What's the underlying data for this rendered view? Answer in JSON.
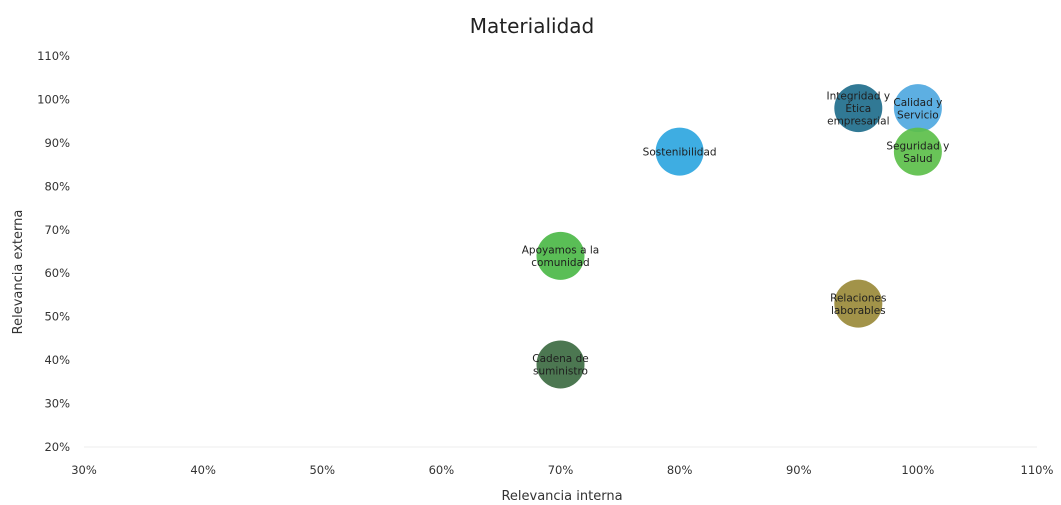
{
  "chart_data": {
    "type": "scatter",
    "title": "Materialidad",
    "xlabel": "Relevancia interna",
    "ylabel": "Relevancia externa",
    "xlim": [
      30,
      110
    ],
    "ylim": [
      20,
      110
    ],
    "x_ticks": [
      "30%",
      "40%",
      "50%",
      "60%",
      "70%",
      "80%",
      "90%",
      "100%",
      "110%"
    ],
    "y_ticks": [
      "20%",
      "30%",
      "40%",
      "50%",
      "60%",
      "70%",
      "80%",
      "90%",
      "100%",
      "110%"
    ],
    "grid": false,
    "legend": "none",
    "points": [
      {
        "label": [
          "Integridad y",
          "Ética",
          "empresarial"
        ],
        "x": 95,
        "y": 98,
        "color": "#1f6e8c"
      },
      {
        "label": [
          "Calidad y",
          "Servicio"
        ],
        "x": 100,
        "y": 98,
        "color": "#4fa8e0"
      },
      {
        "label": [
          "Seguridad y",
          "Salud"
        ],
        "x": 100,
        "y": 88,
        "color": "#5cbf4a"
      },
      {
        "label": [
          "Sostenibilidad"
        ],
        "x": 80,
        "y": 88,
        "color": "#2ea6df"
      },
      {
        "label": [
          "Apoyamos a la",
          "comunidad"
        ],
        "x": 70,
        "y": 64,
        "color": "#4cb848"
      },
      {
        "label": [
          "Relaciones",
          "laborables"
        ],
        "x": 95,
        "y": 53,
        "color": "#9a8a3a"
      },
      {
        "label": [
          "Cadena de",
          "suministro"
        ],
        "x": 70,
        "y": 39,
        "color": "#3d6b42"
      }
    ]
  }
}
